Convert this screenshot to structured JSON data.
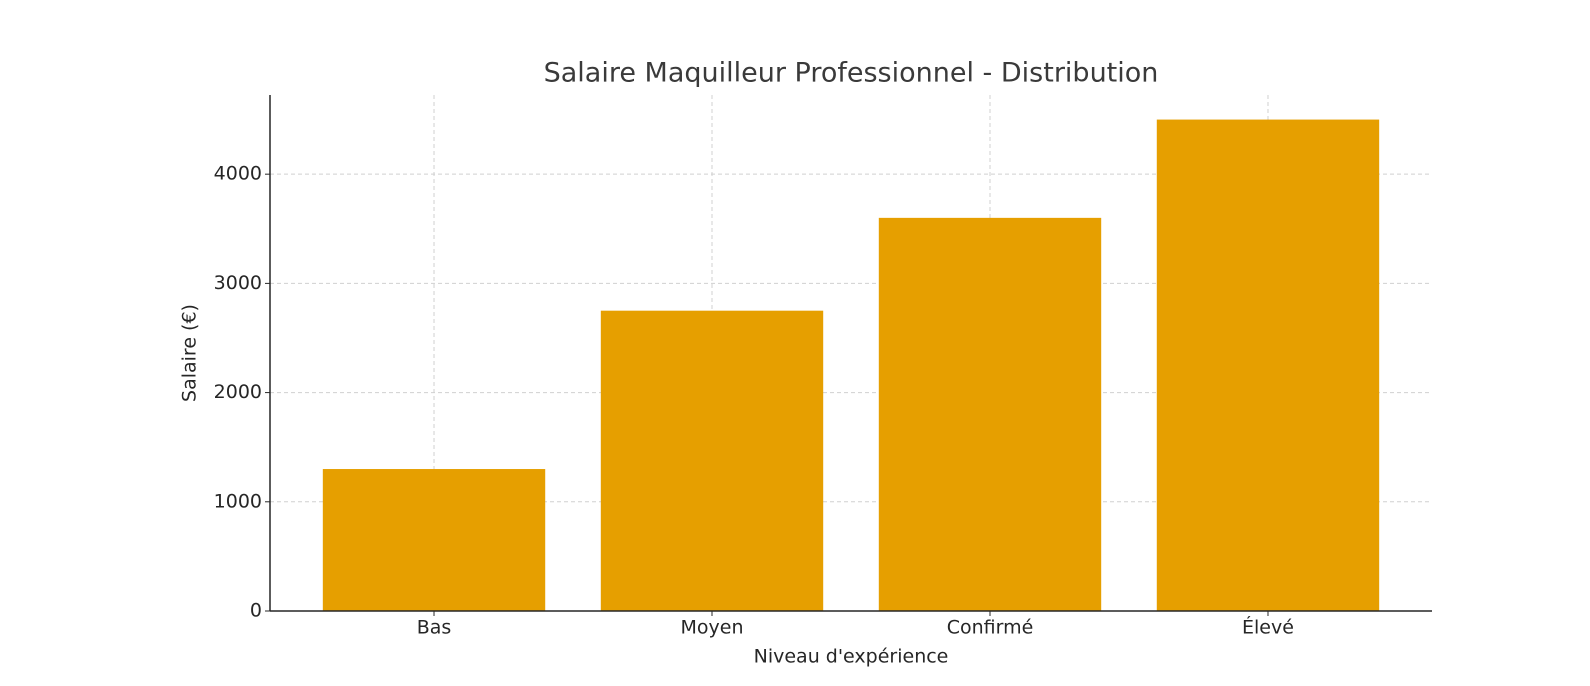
{
  "chart_data": {
    "type": "bar",
    "title": "Salaire Maquilleur Professionnel - Distribution",
    "x_label": "Niveau d'expérience",
    "y_label": "Salaire (€)",
    "categories": [
      "Bas",
      "Moyen",
      "Confirmé",
      "Élevé"
    ],
    "values": [
      1300,
      2750,
      3600,
      4500
    ],
    "color": "#e69f00",
    "ylim": [
      0,
      4725
    ],
    "yticks": [
      0,
      1000,
      2000,
      3000,
      4000
    ],
    "grid": true
  }
}
